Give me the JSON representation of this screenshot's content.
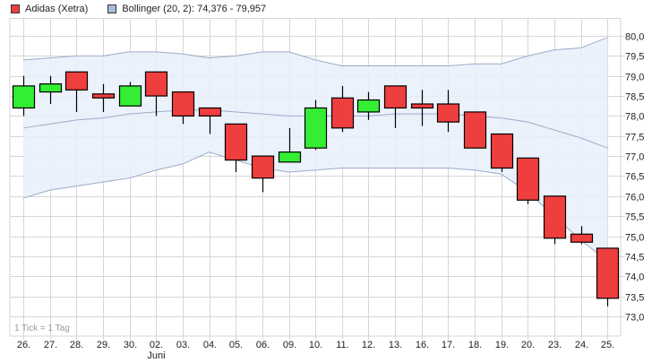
{
  "legend": {
    "items": [
      {
        "label": "Adidas (Xetra)",
        "color": "#ef3e3e"
      },
      {
        "label": "Bollinger (20, 2): 74,376 - 79,957",
        "color": "#a9bcd8"
      }
    ]
  },
  "footnote": "1 Tick = 1 Tag",
  "month_label": "Juni",
  "colors": {
    "up": "#33ee33",
    "down": "#ef3e3e",
    "band_fill": "#e8f0fb",
    "band_line": "#9aabc8",
    "grid": "#d6d6d6"
  },
  "chart_data": {
    "type": "candlestick",
    "title": "",
    "xlabel": "",
    "ylabel": "",
    "ylim": [
      72.8,
      80.2
    ],
    "y_ticks": [
      "80,0",
      "79,5",
      "79,0",
      "78,5",
      "78,0",
      "77,5",
      "77,0",
      "76,5",
      "76,0",
      "75,5",
      "75,0",
      "74,5",
      "74,0",
      "73,5",
      "73,0"
    ],
    "categories": [
      "26.",
      "27.",
      "28.",
      "29.",
      "30.",
      "02.",
      "03.",
      "04.",
      "05.",
      "06.",
      "09.",
      "10.",
      "11.",
      "12.",
      "13.",
      "16.",
      "17.",
      "18.",
      "19.",
      "20.",
      "23.",
      "24.",
      "25."
    ],
    "month_marker": {
      "index": 5,
      "label": "Juni"
    },
    "series": [
      {
        "name": "Adidas (Xetra)",
        "ohlc": [
          {
            "o": 78.2,
            "h": 79.0,
            "l": 78.0,
            "c": 78.75
          },
          {
            "o": 78.6,
            "h": 79.0,
            "l": 78.3,
            "c": 78.8
          },
          {
            "o": 79.1,
            "h": 79.1,
            "l": 78.1,
            "c": 78.65
          },
          {
            "o": 78.55,
            "h": 78.8,
            "l": 78.1,
            "c": 78.45
          },
          {
            "o": 78.25,
            "h": 78.85,
            "l": 78.25,
            "c": 78.75
          },
          {
            "o": 79.1,
            "h": 79.1,
            "l": 78.0,
            "c": 78.5
          },
          {
            "o": 78.6,
            "h": 78.6,
            "l": 77.8,
            "c": 78.0
          },
          {
            "o": 78.2,
            "h": 78.2,
            "l": 77.55,
            "c": 78.0
          },
          {
            "o": 77.8,
            "h": 77.8,
            "l": 76.6,
            "c": 76.9
          },
          {
            "o": 77.0,
            "h": 77.0,
            "l": 76.1,
            "c": 76.45
          },
          {
            "o": 76.85,
            "h": 77.7,
            "l": 76.85,
            "c": 77.1
          },
          {
            "o": 77.2,
            "h": 78.4,
            "l": 77.15,
            "c": 78.2
          },
          {
            "o": 78.45,
            "h": 78.75,
            "l": 77.6,
            "c": 77.7
          },
          {
            "o": 78.1,
            "h": 78.6,
            "l": 77.9,
            "c": 78.4
          },
          {
            "o": 78.75,
            "h": 78.75,
            "l": 77.7,
            "c": 78.2
          },
          {
            "o": 78.3,
            "h": 78.65,
            "l": 77.75,
            "c": 78.2
          },
          {
            "o": 78.3,
            "h": 78.65,
            "l": 77.6,
            "c": 77.85
          },
          {
            "o": 78.1,
            "h": 78.1,
            "l": 77.2,
            "c": 77.2
          },
          {
            "o": 77.55,
            "h": 77.55,
            "l": 76.6,
            "c": 76.7
          },
          {
            "o": 76.95,
            "h": 76.95,
            "l": 75.8,
            "c": 75.9
          },
          {
            "o": 76.0,
            "h": 76.0,
            "l": 74.8,
            "c": 74.95
          },
          {
            "o": 75.05,
            "h": 75.25,
            "l": 74.8,
            "c": 74.85
          },
          {
            "o": 74.7,
            "h": 74.7,
            "l": 73.25,
            "c": 73.45
          }
        ]
      },
      {
        "name": "Bollinger upper",
        "values": [
          79.4,
          79.45,
          79.5,
          79.5,
          79.6,
          79.6,
          79.55,
          79.45,
          79.5,
          79.6,
          79.6,
          79.4,
          79.25,
          79.25,
          79.25,
          79.25,
          79.25,
          79.3,
          79.3,
          79.5,
          79.65,
          79.7,
          79.96
        ]
      },
      {
        "name": "Bollinger middle",
        "values": [
          77.7,
          77.8,
          77.9,
          77.95,
          78.05,
          78.1,
          78.15,
          78.15,
          78.1,
          78.05,
          78.0,
          78.0,
          78.0,
          78.0,
          78.05,
          78.05,
          78.05,
          78.0,
          77.95,
          77.85,
          77.65,
          77.45,
          77.2
        ]
      },
      {
        "name": "Bollinger lower",
        "values": [
          75.95,
          76.15,
          76.25,
          76.35,
          76.45,
          76.65,
          76.8,
          77.1,
          76.9,
          76.7,
          76.6,
          76.65,
          76.7,
          76.7,
          76.7,
          76.7,
          76.7,
          76.65,
          76.55,
          76.1,
          75.5,
          74.9,
          74.38
        ]
      }
    ],
    "legend_position": "top-left",
    "grid": true
  }
}
